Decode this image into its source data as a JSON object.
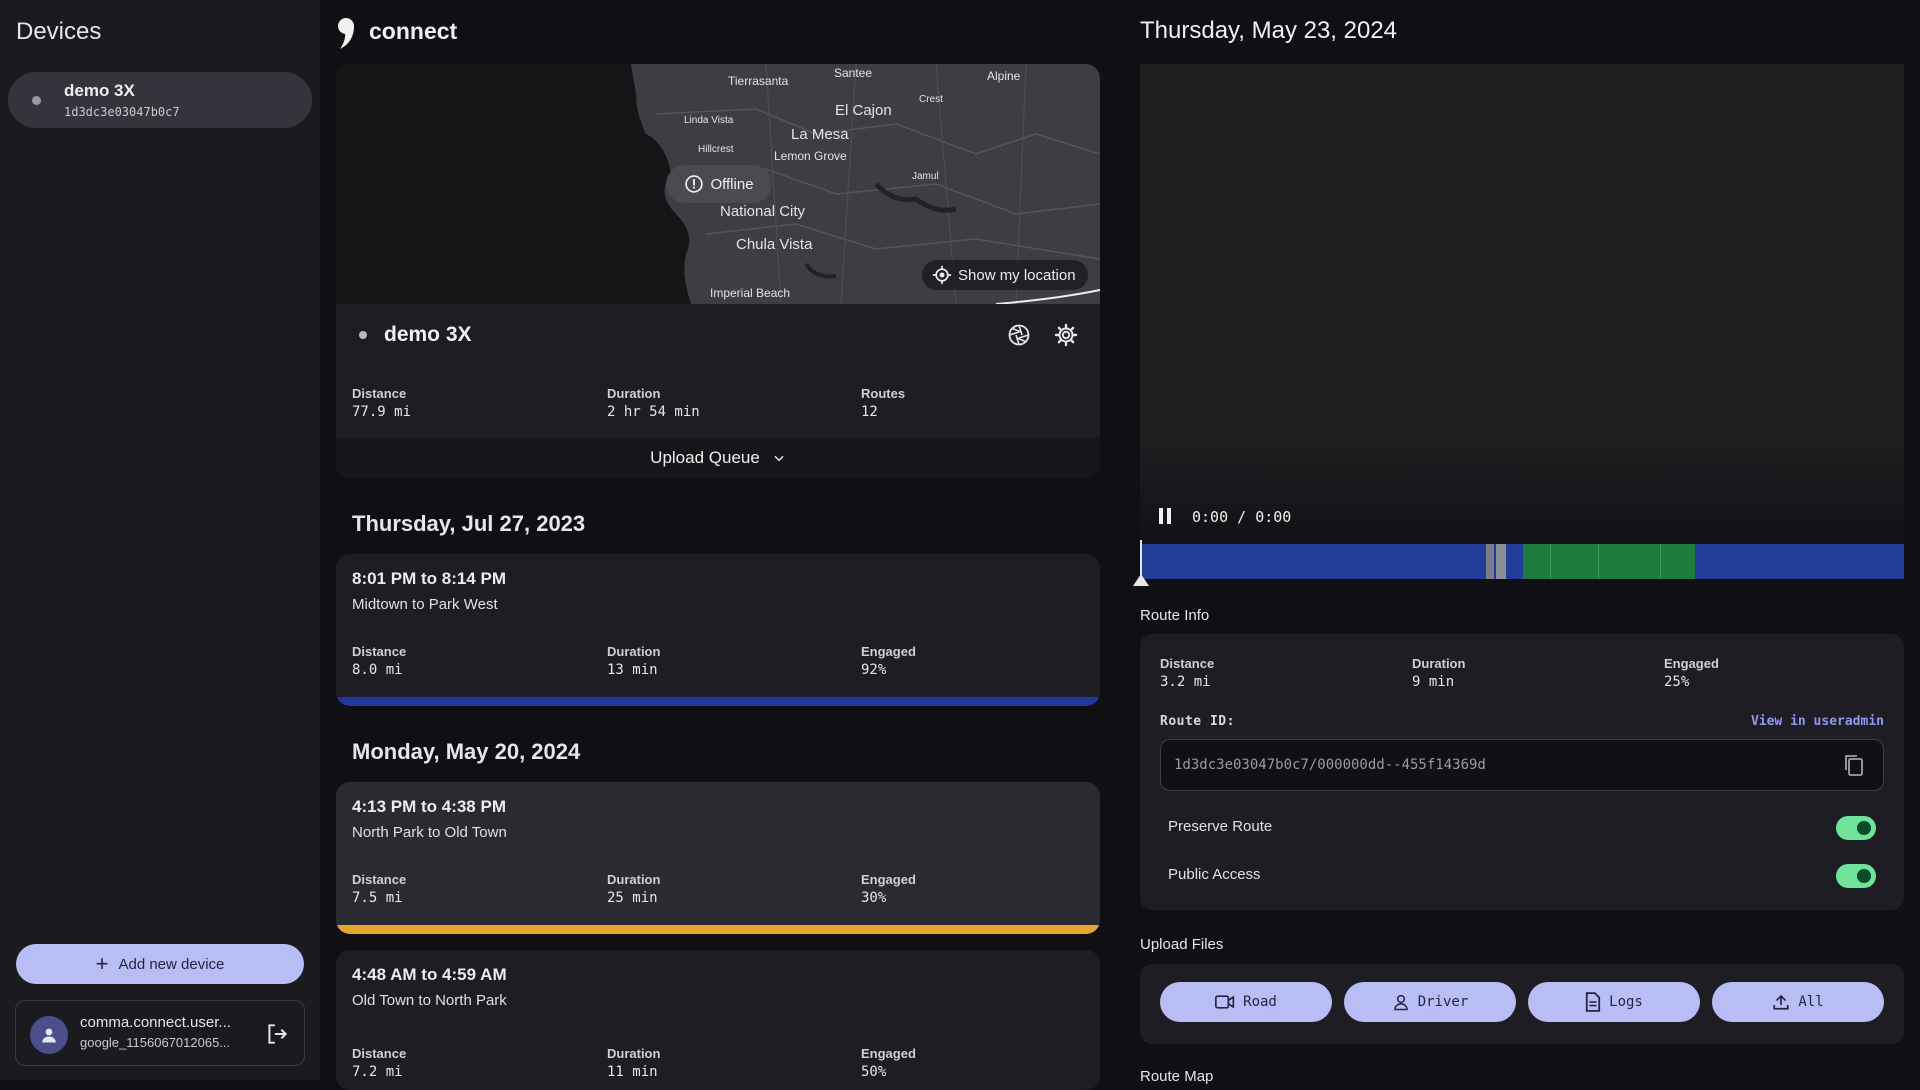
{
  "sidebar": {
    "title": "Devices",
    "devices": [
      {
        "name": "demo 3X",
        "id": "1d3dc3e03047b0c7"
      }
    ],
    "add_device_label": "Add new device",
    "account": {
      "name": "comma.connect.user...",
      "sub": "google_1156067012065..."
    }
  },
  "header": {
    "brand": "connect"
  },
  "device_panel": {
    "map_labels": [
      "Tierrasanta",
      "Santee",
      "Alpine",
      "Crest",
      "El Cajon",
      "Linda Vista",
      "La Mesa",
      "Hillcrest",
      "Lemon Grove",
      "Jamul",
      "National City",
      "Chula Vista",
      "Imperial Beach"
    ],
    "offline_label": "Offline",
    "show_location_label": "Show my location",
    "device_name": "demo 3X",
    "stats": [
      {
        "label": "Distance",
        "value": "77.9 mi"
      },
      {
        "label": "Duration",
        "value": "2 hr 54 min"
      },
      {
        "label": "Routes",
        "value": "12"
      }
    ],
    "upload_queue_label": "Upload Queue"
  },
  "route_days": [
    {
      "date": "Thursday, Jul 27, 2023",
      "routes": [
        {
          "time": "8:01 PM to 8:14 PM",
          "name": "Midtown to Park West",
          "stats": [
            {
              "label": "Distance",
              "value": "8.0 mi"
            },
            {
              "label": "Duration",
              "value": "13 min"
            },
            {
              "label": "Engaged",
              "value": "92%"
            }
          ],
          "bar_color": "#2238a0"
        }
      ]
    },
    {
      "date": "Monday, May 20, 2024",
      "routes": [
        {
          "time": "4:13 PM to 4:38 PM",
          "name": "North Park to Old Town",
          "stats": [
            {
              "label": "Distance",
              "value": "7.5 mi"
            },
            {
              "label": "Duration",
              "value": "25 min"
            },
            {
              "label": "Engaged",
              "value": "30%"
            }
          ],
          "bar_color": "#e3a72f"
        },
        {
          "time": "4:48 AM to 4:59 AM",
          "name": "Old Town to North Park",
          "stats": [
            {
              "label": "Distance",
              "value": "7.2 mi"
            },
            {
              "label": "Duration",
              "value": "11 min"
            },
            {
              "label": "Engaged",
              "value": "50%"
            }
          ],
          "bar_color": "#2238a0"
        }
      ]
    }
  ],
  "detail": {
    "date": "Thursday, May 23, 2024",
    "video_time": "0:00 / 0:00",
    "route_info_title": "Route Info",
    "stats": [
      {
        "label": "Distance",
        "value": "3.2 mi"
      },
      {
        "label": "Duration",
        "value": "9 min"
      },
      {
        "label": "Engaged",
        "value": "25%"
      }
    ],
    "route_id_label": "Route ID:",
    "view_link": "View in useradmin",
    "route_id": "1d3dc3e03047b0c7/000000dd--455f14369d",
    "toggles": [
      {
        "label": "Preserve Route",
        "on": true
      },
      {
        "label": "Public Access",
        "on": true
      }
    ],
    "upload_title": "Upload Files",
    "upload_buttons": [
      {
        "label": "Road",
        "icon": "video-icon"
      },
      {
        "label": "Driver",
        "icon": "person-icon"
      },
      {
        "label": "Logs",
        "icon": "document-icon"
      },
      {
        "label": "All",
        "icon": "upload-icon"
      }
    ],
    "route_map_title": "Route Map"
  },
  "colors": {
    "accent": "#b9bdf5",
    "timeline_base": "#233c9a",
    "engaged": "#1f7a3e",
    "toggle_on": "#6fe39a"
  }
}
